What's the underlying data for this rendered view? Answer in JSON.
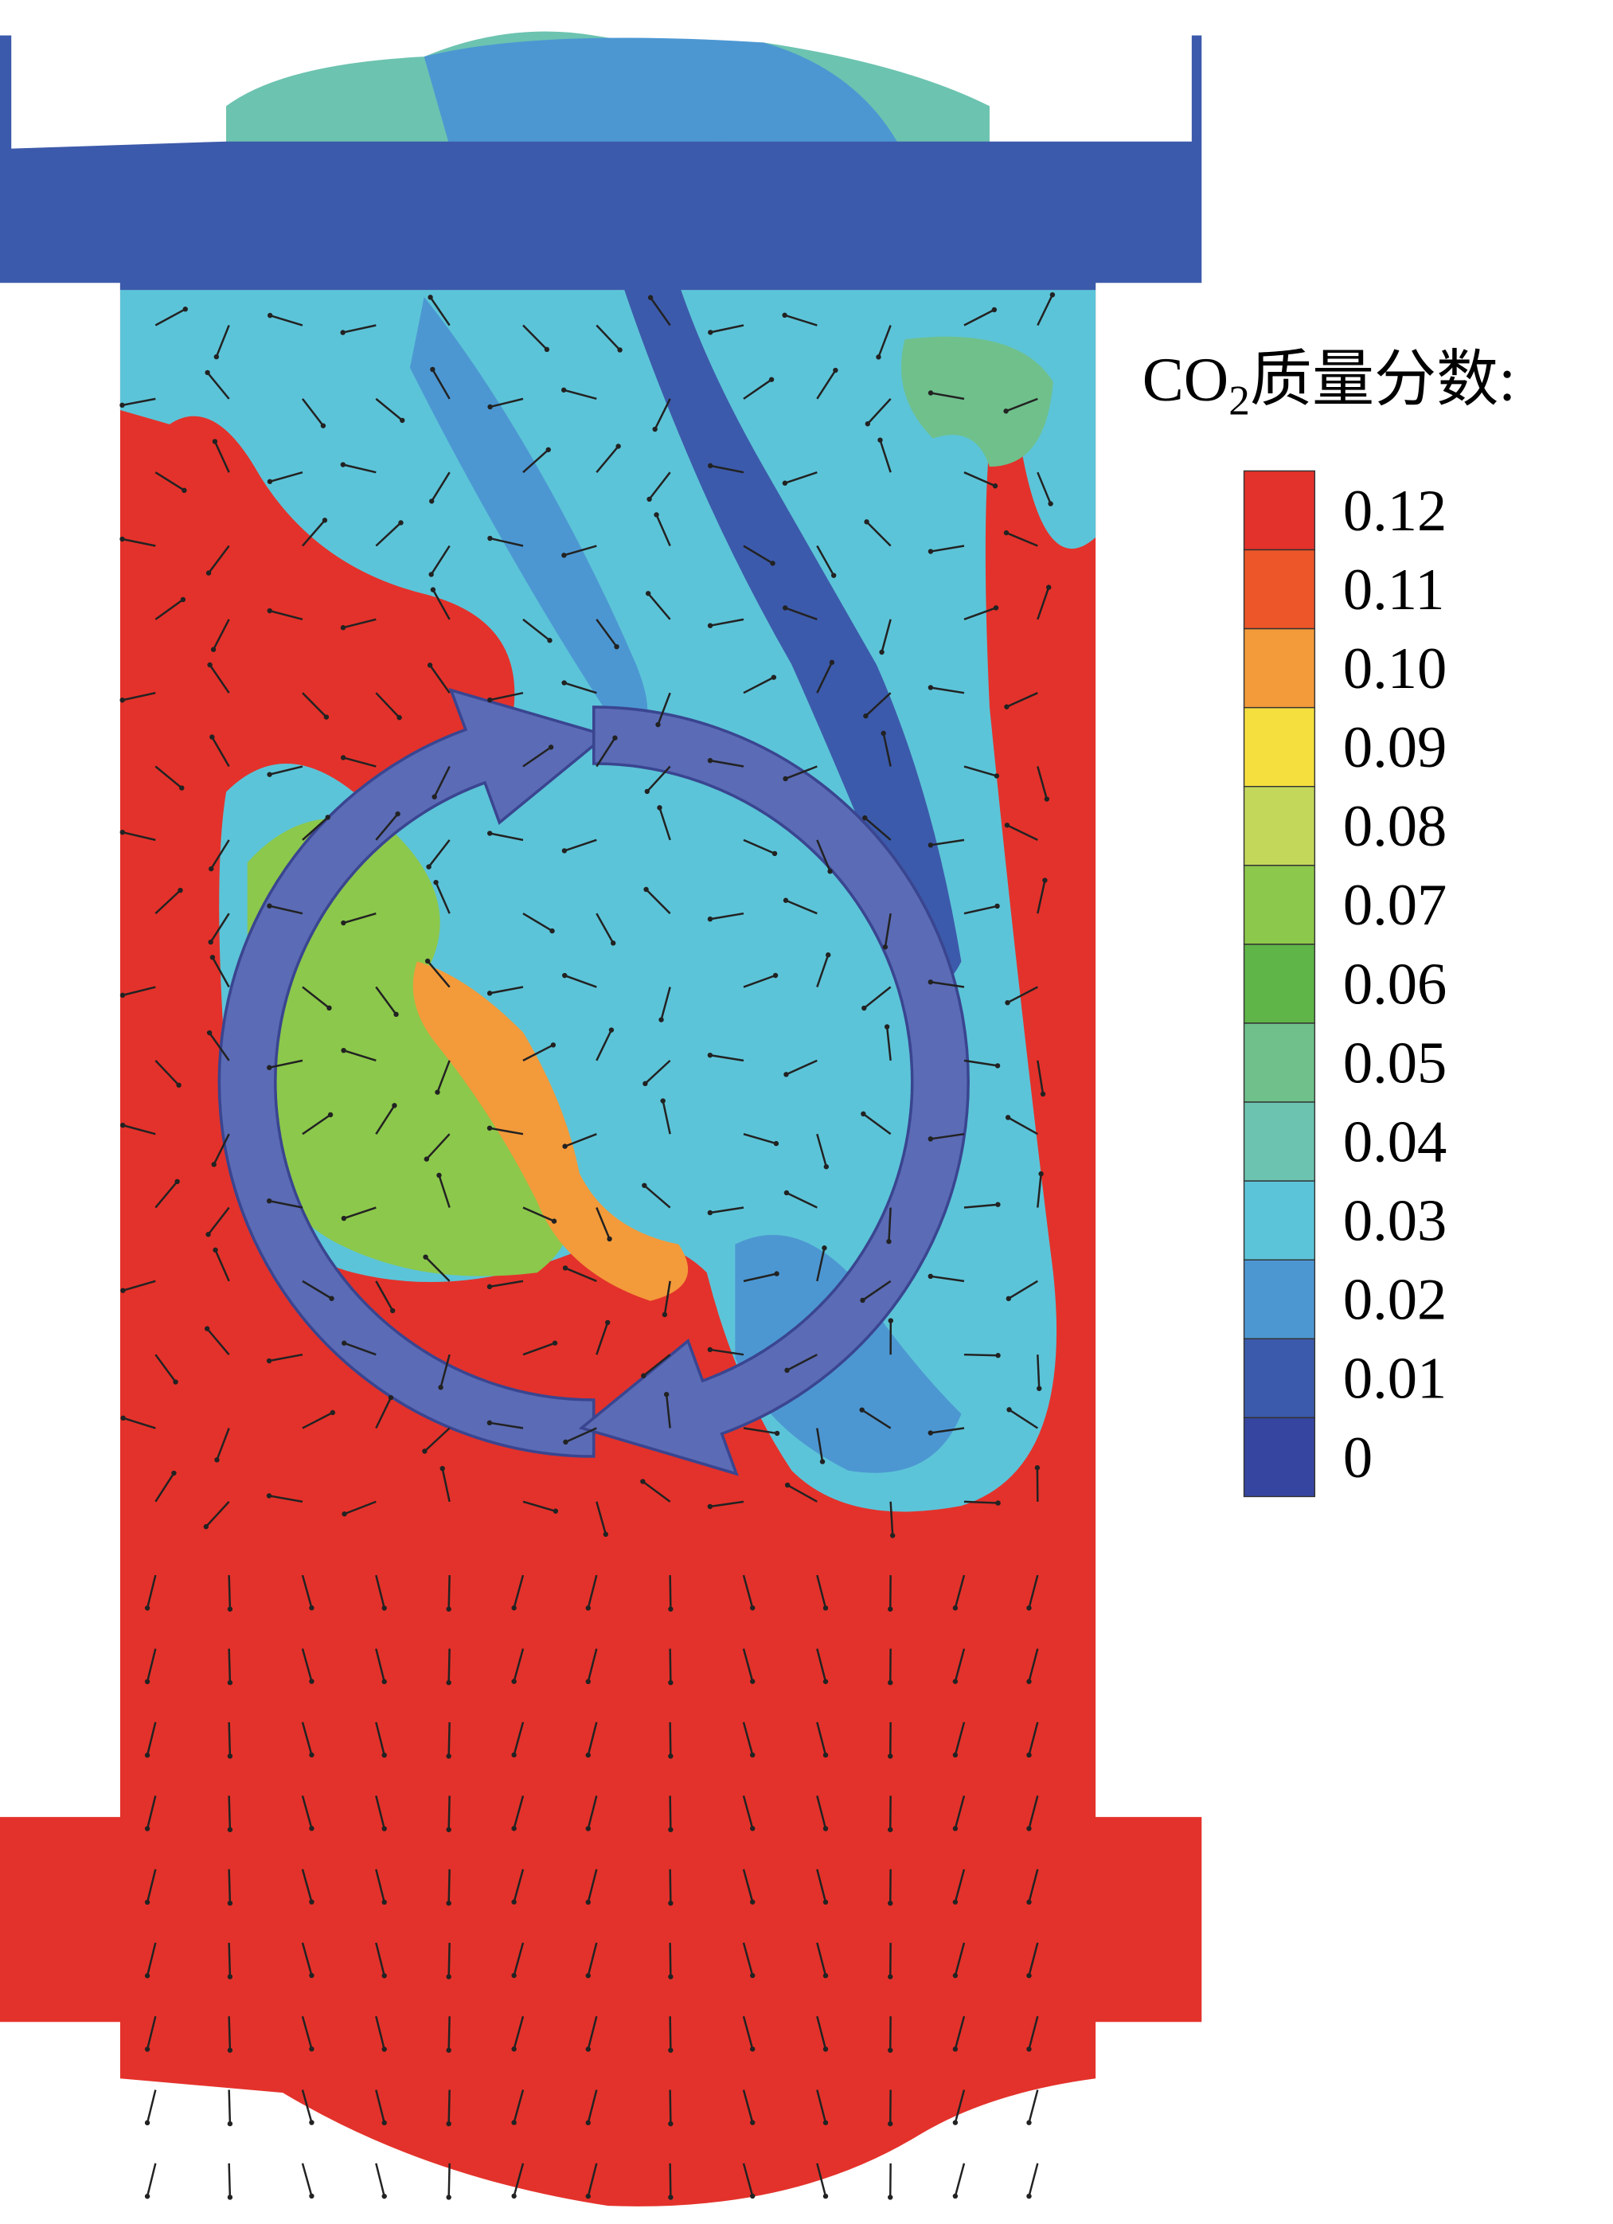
{
  "legend": {
    "title": {
      "prefix": "CO",
      "subscript": "2",
      "suffix": "质量分数:"
    },
    "ticks": [
      0.12,
      0.11,
      {
        "value": 0.1,
        "label": "0.10"
      },
      0.09,
      0.08,
      0.07,
      0.06,
      0.05,
      0.04,
      0.03,
      0.02,
      0.01,
      0
    ],
    "colors": [
      "#e3322b",
      "#ec5628",
      "#f39a3a",
      "#f5df3f",
      "#c3d85a",
      "#8cc84b",
      "#5fb548",
      "#6fc08b",
      "#6cc3b0",
      "#5cc4d8",
      "#4c97d2",
      "#3c5aab",
      "#3646a0"
    ]
  }
}
